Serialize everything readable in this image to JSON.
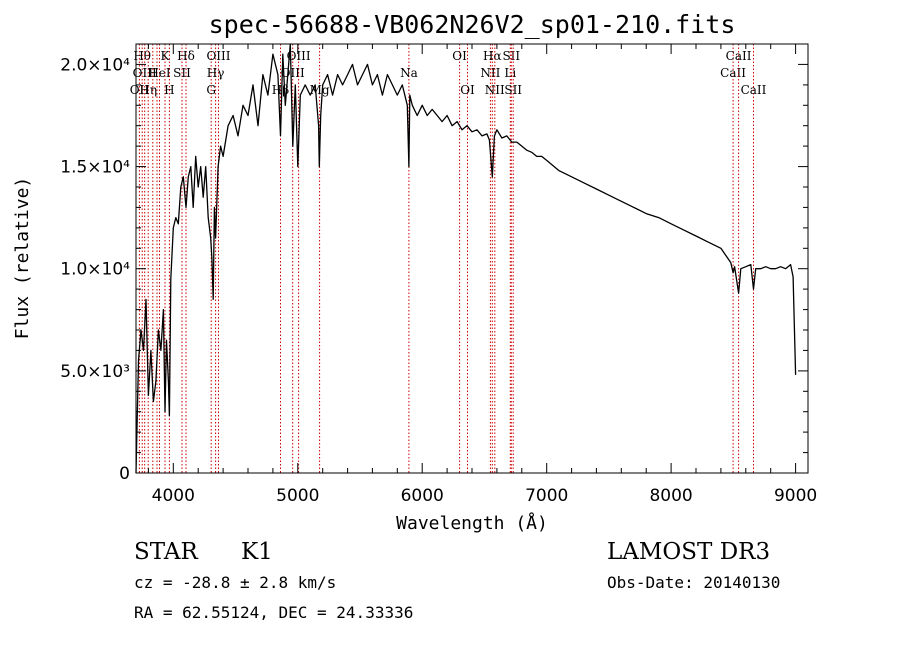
{
  "chart_data": {
    "type": "line",
    "title": "spec-56688-VB062N26V2_sp01-210.fits",
    "xlabel": "Wavelength (Å)",
    "ylabel": "Flux (relative)",
    "xlim": [
      3700,
      9100
    ],
    "ylim": [
      0,
      21000
    ],
    "x_ticks": [
      {
        "value": 4000,
        "label": "4000"
      },
      {
        "value": 5000,
        "label": "5000"
      },
      {
        "value": 6000,
        "label": "6000"
      },
      {
        "value": 7000,
        "label": "7000"
      },
      {
        "value": 8000,
        "label": "8000"
      },
      {
        "value": 9000,
        "label": "9000"
      }
    ],
    "y_ticks": [
      {
        "value": 0,
        "label": "0"
      },
      {
        "value": 5000,
        "label": "5.0×10³"
      },
      {
        "value": 10000,
        "label": "1.0×10⁴"
      },
      {
        "value": 15000,
        "label": "1.5×10⁴"
      },
      {
        "value": 20000,
        "label": "2.0×10⁴"
      }
    ],
    "series": [
      {
        "name": "flux",
        "x": [
          3700,
          3720,
          3740,
          3760,
          3780,
          3800,
          3820,
          3840,
          3860,
          3880,
          3900,
          3920,
          3933,
          3945,
          3960,
          3968,
          3980,
          4000,
          4020,
          4040,
          4060,
          4080,
          4102,
          4120,
          4140,
          4160,
          4180,
          4200,
          4220,
          4240,
          4260,
          4280,
          4300,
          4310,
          4320,
          4330,
          4340,
          4360,
          4380,
          4400,
          4440,
          4480,
          4520,
          4560,
          4600,
          4640,
          4680,
          4720,
          4760,
          4800,
          4840,
          4861,
          4880,
          4900,
          4920,
          4940,
          4960,
          4980,
          5000,
          5020,
          5060,
          5100,
          5140,
          5167,
          5173,
          5184,
          5200,
          5240,
          5280,
          5320,
          5360,
          5400,
          5440,
          5480,
          5520,
          5560,
          5600,
          5640,
          5680,
          5720,
          5760,
          5800,
          5840,
          5880,
          5893,
          5900,
          5920,
          5960,
          6000,
          6040,
          6080,
          6120,
          6160,
          6200,
          6240,
          6280,
          6320,
          6360,
          6400,
          6440,
          6480,
          6520,
          6540,
          6563,
          6580,
          6600,
          6640,
          6680,
          6720,
          6760,
          6800,
          6840,
          6880,
          6920,
          6960,
          7000,
          7100,
          7200,
          7300,
          7400,
          7500,
          7600,
          7700,
          7800,
          7900,
          8000,
          8100,
          8200,
          8300,
          8400,
          8480,
          8498,
          8510,
          8542,
          8560,
          8600,
          8640,
          8662,
          8680,
          8720,
          8760,
          8800,
          8840,
          8880,
          8920,
          8960,
          8980,
          9000
        ],
        "y": [
          0,
          5500,
          7000,
          6000,
          8500,
          3800,
          6000,
          3500,
          4500,
          7000,
          6000,
          8000,
          3000,
          6500,
          4500,
          2800,
          9500,
          12000,
          12500,
          12200,
          14000,
          14500,
          13000,
          14500,
          15000,
          13000,
          15500,
          14000,
          15000,
          13500,
          15000,
          12500,
          11500,
          10500,
          8500,
          13000,
          11500,
          15000,
          16000,
          15500,
          17000,
          17500,
          16500,
          18000,
          17500,
          19000,
          17000,
          19500,
          18500,
          20500,
          19500,
          16500,
          20500,
          18000,
          19500,
          21000,
          16000,
          19000,
          15000,
          18500,
          19000,
          18500,
          19000,
          17000,
          15000,
          17500,
          19000,
          19500,
          18500,
          19500,
          19000,
          19500,
          20000,
          19000,
          19500,
          20000,
          19000,
          19500,
          18500,
          19500,
          19000,
          18500,
          19000,
          18000,
          15000,
          18500,
          18000,
          17500,
          18000,
          17500,
          17800,
          17500,
          17200,
          17500,
          17000,
          17200,
          16800,
          17000,
          16700,
          16800,
          16500,
          16600,
          16300,
          14500,
          16500,
          16800,
          16400,
          16500,
          16200,
          16200,
          16000,
          15800,
          15700,
          15500,
          15500,
          15300,
          14800,
          14500,
          14200,
          13900,
          13600,
          13300,
          13000,
          12700,
          12500,
          12200,
          11900,
          11600,
          11300,
          11000,
          10300,
          9800,
          10100,
          8800,
          10000,
          10100,
          10200,
          9000,
          10000,
          10000,
          10100,
          10000,
          10000,
          10100,
          10000,
          10200,
          9600,
          4800
        ]
      }
    ],
    "lines": [
      {
        "x": 3727,
        "label": "OII",
        "row": 2,
        "align": "center"
      },
      {
        "x": 3750,
        "label": "Hθ",
        "row": 0,
        "align": "center"
      },
      {
        "x": 3770,
        "label": "OIII",
        "row": 1,
        "align": "center"
      },
      {
        "x": 3798,
        "label": "Hη",
        "row": 2,
        "align": "center"
      },
      {
        "x": 3835,
        "label": "",
        "row": 0,
        "align": "center"
      },
      {
        "x": 3869,
        "label": "",
        "row": 0,
        "align": "center"
      },
      {
        "x": 3889,
        "label": "HeI",
        "row": 1,
        "align": "center"
      },
      {
        "x": 3933,
        "label": "K",
        "row": 0,
        "align": "center"
      },
      {
        "x": 3968,
        "label": "H",
        "row": 2,
        "align": "center"
      },
      {
        "x": 4070,
        "label": "SII",
        "row": 1,
        "align": "center"
      },
      {
        "x": 4102,
        "label": "Hδ",
        "row": 0,
        "align": "center"
      },
      {
        "x": 4304,
        "label": "G",
        "row": 2,
        "align": "center"
      },
      {
        "x": 4340,
        "label": "Hγ",
        "row": 1,
        "align": "center"
      },
      {
        "x": 4363,
        "label": "OIII",
        "row": 0,
        "align": "center"
      },
      {
        "x": 4861,
        "label": "Hβ",
        "row": 2,
        "align": "center"
      },
      {
        "x": 4959,
        "label": "OIII",
        "row": 1,
        "align": "center"
      },
      {
        "x": 5007,
        "label": "OIII",
        "row": 0,
        "align": "center"
      },
      {
        "x": 5175,
        "label": "Mg",
        "row": 2,
        "align": "center"
      },
      {
        "x": 5893,
        "label": "Na",
        "row": 1,
        "align": "center"
      },
      {
        "x": 6300,
        "label": "OI",
        "row": 0,
        "align": "center"
      },
      {
        "x": 6364,
        "label": "OI",
        "row": 2,
        "align": "center"
      },
      {
        "x": 6548,
        "label": "NII",
        "row": 1,
        "align": "center"
      },
      {
        "x": 6563,
        "label": "Hα",
        "row": 0,
        "align": "center"
      },
      {
        "x": 6583,
        "label": "NII",
        "row": 2,
        "align": "center"
      },
      {
        "x": 6708,
        "label": "Li",
        "row": 1,
        "align": "center"
      },
      {
        "x": 6716,
        "label": "SII",
        "row": 0,
        "align": "center"
      },
      {
        "x": 6731,
        "label": "SII",
        "row": 2,
        "align": "center"
      },
      {
        "x": 8498,
        "label": "CaII",
        "row": 1,
        "align": "center"
      },
      {
        "x": 8542,
        "label": "CaII",
        "row": 0,
        "align": "center"
      },
      {
        "x": 8662,
        "label": "CaII",
        "row": 2,
        "align": "center"
      }
    ],
    "colors": {
      "data": "#000000",
      "lines": "#cc0000",
      "axes": "#000000"
    }
  },
  "info": {
    "class_label": "STAR",
    "subclass": "K1",
    "redshift": "cz = -28.8 ± 2.8 km/s",
    "coords": "RA =  62.55124, DEC =  24.33336",
    "survey": "LAMOST DR3",
    "obs_date": "Obs-Date: 20140130"
  }
}
